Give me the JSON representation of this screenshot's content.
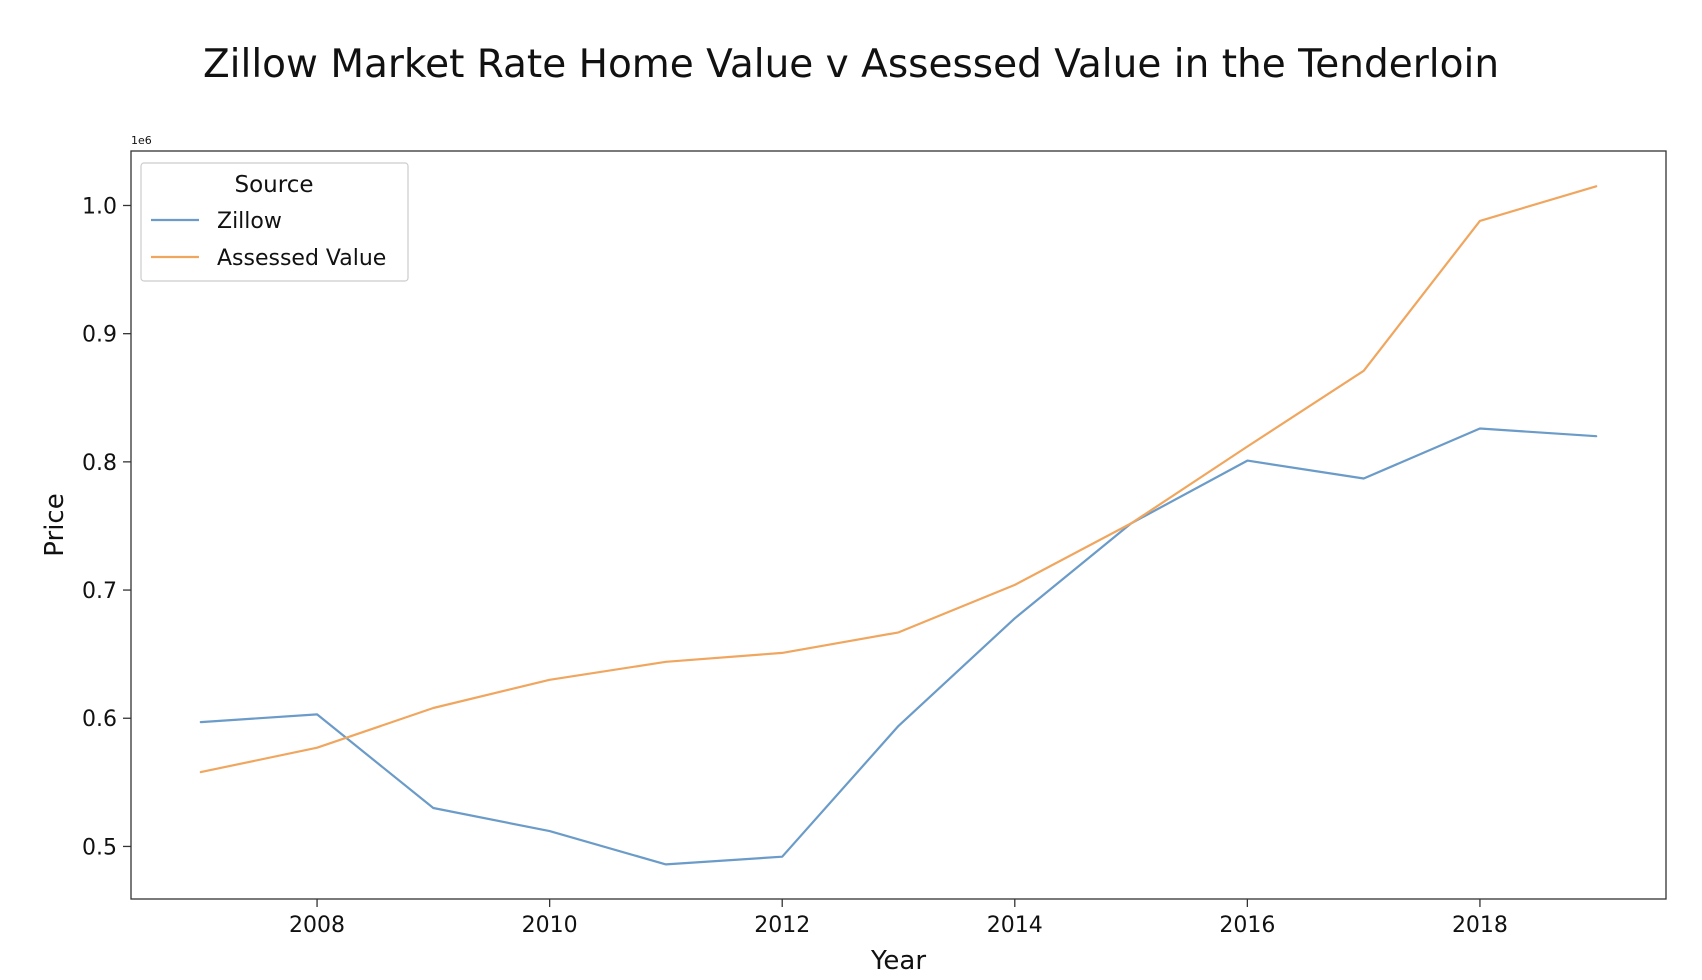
{
  "chart_data": {
    "type": "line",
    "title": "Zillow Market Rate Home Value v Assessed Value in the Tenderloin",
    "xlabel": "Year",
    "ylabel": "Price",
    "y_offset_label": "1e6",
    "x": [
      2007,
      2008,
      2009,
      2010,
      2011,
      2012,
      2013,
      2014,
      2015,
      2016,
      2017,
      2018,
      2019
    ],
    "xlim": [
      2006.4,
      2019.6
    ],
    "ylim": [
      0.459,
      1.0425
    ],
    "x_ticks": [
      2008,
      2010,
      2012,
      2014,
      2016,
      2018
    ],
    "y_ticks": [
      0.5,
      0.6,
      0.7,
      0.8,
      0.9,
      1.0
    ],
    "y_tick_labels": [
      "0.5",
      "0.6",
      "0.7",
      "0.8",
      "0.9",
      "1.0"
    ],
    "grid": false,
    "legend": {
      "title": "Source",
      "position": "top-left"
    },
    "series": [
      {
        "name": "Zillow",
        "color": "#6b9bc8",
        "values": [
          0.597,
          0.603,
          0.53,
          0.512,
          0.486,
          0.492,
          0.594,
          0.678,
          0.752,
          0.801,
          0.787,
          0.826,
          0.82
        ]
      },
      {
        "name": "Assessed Value",
        "color": "#f0a65e",
        "values": [
          0.558,
          0.577,
          0.608,
          0.63,
          0.644,
          0.651,
          0.667,
          0.704,
          0.752,
          0.812,
          0.871,
          0.988,
          1.015
        ]
      }
    ]
  }
}
